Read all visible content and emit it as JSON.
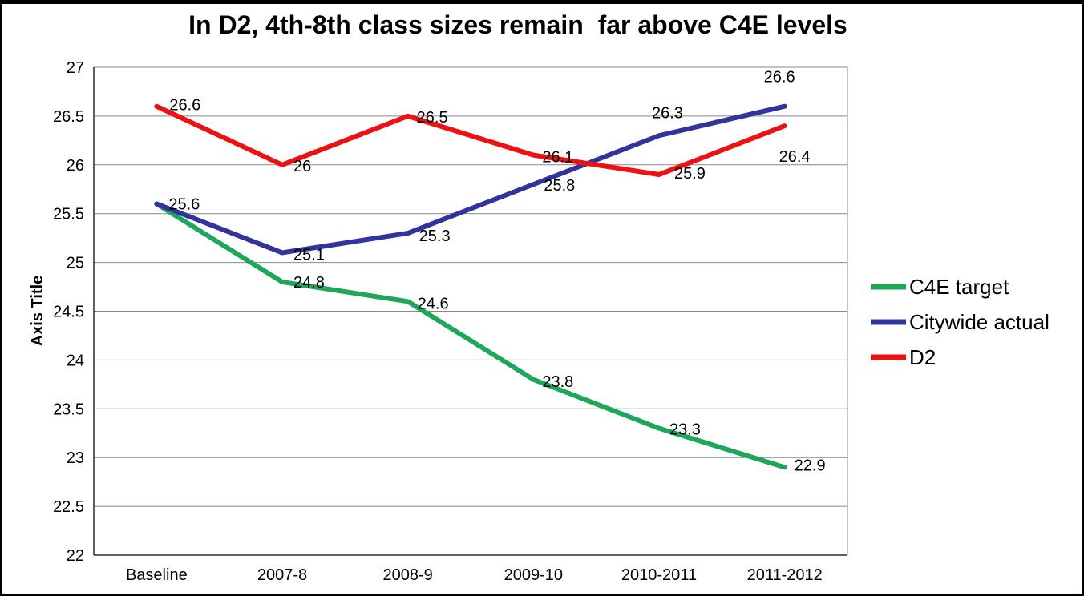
{
  "chart_data": {
    "type": "line",
    "title": "In D2, 4th-8th class sizes remain  far above C4E levels",
    "categories": [
      "Baseline",
      "2007-8",
      "2008-9",
      "2009-10",
      "2010-2011",
      "2011-2012"
    ],
    "series": [
      {
        "name": "C4E target",
        "color": "#1EA75A",
        "values": [
          25.6,
          24.8,
          24.6,
          23.8,
          23.3,
          22.9
        ],
        "labels": [
          "",
          "24.8",
          "24.6",
          "23.8",
          "23.3",
          "22.9"
        ]
      },
      {
        "name": "Citywide actual",
        "color": "#32339B",
        "values": [
          25.6,
          25.1,
          25.3,
          25.8,
          26.3,
          26.6
        ],
        "labels": [
          "25.6",
          "25.1",
          "25.3",
          "25.8",
          "26.3",
          "26.6"
        ]
      },
      {
        "name": "D2",
        "color": "#EE1111",
        "values": [
          26.6,
          26,
          26.5,
          26.1,
          25.9,
          26.4
        ],
        "labels": [
          "26.6",
          "26",
          "26.5",
          "26.1",
          "25.9",
          "26.4"
        ]
      }
    ],
    "xlabel": "",
    "ylabel": "Axis Title",
    "ylim": [
      22,
      27
    ],
    "ytick_step": 0.5,
    "yticks": [
      "27",
      "26.5",
      "26",
      "25.5",
      "25",
      "24.5",
      "24",
      "23.5",
      "23",
      "22.5",
      "22"
    ],
    "grid": true,
    "legend_position": "right",
    "legend": [
      "C4E target",
      "Citywide actual",
      "D2"
    ],
    "text_color": "#000000",
    "gridline_color": "#898989",
    "axis_line_color": "#2b2b2b",
    "border_color": "#000000"
  }
}
